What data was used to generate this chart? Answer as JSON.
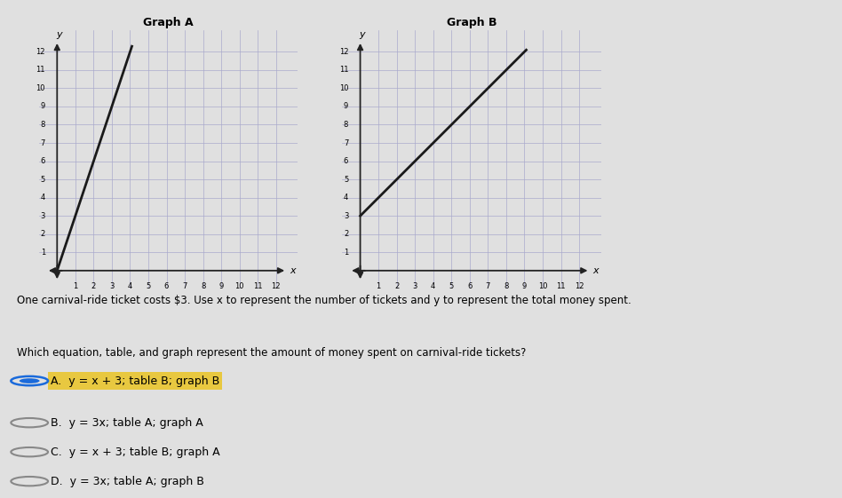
{
  "graph_a_title": "Graph A",
  "graph_b_title": "Graph B",
  "graph_a_slope": 3,
  "graph_a_intercept": 0,
  "graph_a_x_start": 0,
  "graph_a_x_end": 4.1,
  "graph_b_slope": 1,
  "graph_b_intercept": 3,
  "graph_b_x_start": 0,
  "graph_b_x_end": 9.1,
  "xmin": 0,
  "xmax": 12,
  "ymin": 0,
  "ymax": 12,
  "line_color": "#1a1a1a",
  "line_width": 2.0,
  "grid_color": "#aaaacc",
  "axis_color": "#222222",
  "text1": "One carnival-ride ticket costs $3. Use x to represent the number of tickets and y to represent the total money spent.",
  "text2": "Which equation, table, and graph represent the amount of money spent on carnival-ride tickets?",
  "options": [
    {
      "label": "A.",
      "text": "y = x + 3; table B; graph B",
      "selected": true
    },
    {
      "label": "B.",
      "text": "y = 3x; table A; graph A",
      "selected": false
    },
    {
      "label": "C.",
      "text": "y = x + 3; table B; graph A",
      "selected": false
    },
    {
      "label": "D.",
      "text": "y = 3x; table A; graph B",
      "selected": false
    }
  ],
  "highlight_color": "#e8c840",
  "selected_radio_color": "#1a6adb",
  "unselected_radio_color": "#888888",
  "paper_bg": "#e0e0e0"
}
